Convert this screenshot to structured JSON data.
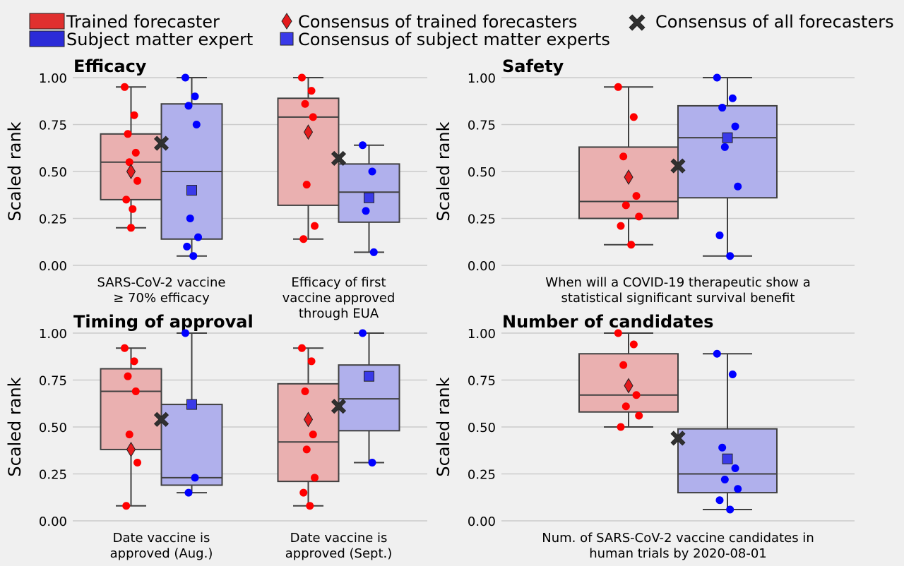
{
  "legend": {
    "entries": [
      {
        "label": "Trained forecaster",
        "marker": "patch",
        "color": "#e0302f"
      },
      {
        "label": "Subject matter expert",
        "marker": "patch",
        "color": "#2b2bd8"
      },
      {
        "label": "Consensus of trained forecasters",
        "marker": "diamond",
        "color": "#e41a1c"
      },
      {
        "label": "Consensus of subject matter experts",
        "marker": "square",
        "color": "#3a3ae8"
      },
      {
        "label": "Consensus of all forecasters",
        "marker": "x",
        "color": "#303030"
      }
    ]
  },
  "colors": {
    "background": "#f0f0f0",
    "grid": "#cbcbcb",
    "trained_box": "#eab0b0",
    "expert_box": "#b0b0ec",
    "trained_point": "#ff0000",
    "expert_point": "#0000ff",
    "box_edge": "#404040"
  },
  "chart_data": [
    {
      "type": "box",
      "title": "Efficacy",
      "ylabel": "Scaled rank",
      "ylim": [
        0,
        1
      ],
      "yticks": [
        "0.00",
        "0.25",
        "0.50",
        "0.75",
        "1.00"
      ],
      "grid": true,
      "categories": [
        {
          "label": [
            "SARS-CoV-2 vaccine",
            "≥ 70% efficacy"
          ],
          "trained": {
            "min": 0.2,
            "q1": 0.35,
            "median": 0.55,
            "q3": 0.7,
            "max": 0.95,
            "consensus": 0.5,
            "points": [
              0.95,
              0.8,
              0.7,
              0.6,
              0.55,
              0.45,
              0.35,
              0.3,
              0.2
            ]
          },
          "expert": {
            "min": 0.05,
            "q1": 0.14,
            "median": 0.5,
            "q3": 0.86,
            "max": 1.0,
            "consensus": 0.4,
            "points": [
              1.0,
              0.9,
              0.85,
              0.75,
              0.25,
              0.15,
              0.1,
              0.05
            ]
          },
          "all_consensus": 0.65
        },
        {
          "label": [
            "Efficacy of first",
            "vaccine approved",
            "through EUA"
          ],
          "trained": {
            "min": 0.14,
            "q1": 0.32,
            "median": 0.79,
            "q3": 0.89,
            "max": 1.0,
            "consensus": 0.71,
            "points": [
              1.0,
              0.93,
              0.86,
              0.79,
              0.43,
              0.21,
              0.14
            ]
          },
          "expert": {
            "min": 0.07,
            "q1": 0.23,
            "median": 0.39,
            "q3": 0.54,
            "max": 0.64,
            "consensus": 0.36,
            "points": [
              0.64,
              0.5,
              0.29,
              0.07
            ]
          },
          "all_consensus": 0.57
        }
      ]
    },
    {
      "type": "box",
      "title": "Safety",
      "ylabel": "Scaled rank",
      "ylim": [
        0,
        1
      ],
      "yticks": [
        "0.00",
        "0.25",
        "0.50",
        "0.75",
        "1.00"
      ],
      "grid": true,
      "categories": [
        {
          "label": [
            "When will a COVID-19 therapeutic show a",
            "statistical significant survival benefit"
          ],
          "trained": {
            "min": 0.11,
            "q1": 0.25,
            "median": 0.34,
            "q3": 0.63,
            "max": 0.95,
            "consensus": 0.47,
            "points": [
              0.95,
              0.79,
              0.58,
              0.37,
              0.32,
              0.26,
              0.21,
              0.11
            ]
          },
          "expert": {
            "min": 0.05,
            "q1": 0.36,
            "median": 0.68,
            "q3": 0.85,
            "max": 1.0,
            "consensus": 0.68,
            "points": [
              1.0,
              0.89,
              0.84,
              0.74,
              0.63,
              0.42,
              0.16,
              0.05
            ]
          },
          "all_consensus": 0.53
        }
      ]
    },
    {
      "type": "box",
      "title": "Timing of approval",
      "ylabel": "Scaled rank",
      "ylim": [
        0,
        1
      ],
      "yticks": [
        "0.00",
        "0.25",
        "0.50",
        "0.75",
        "1.00"
      ],
      "grid": true,
      "categories": [
        {
          "label": [
            "Date vaccine is",
            "approved (Aug.)"
          ],
          "trained": {
            "min": 0.08,
            "q1": 0.38,
            "median": 0.69,
            "q3": 0.81,
            "max": 0.92,
            "consensus": 0.38,
            "points": [
              0.92,
              0.85,
              0.77,
              0.69,
              0.46,
              0.31,
              0.08
            ]
          },
          "expert": {
            "min": 0.15,
            "q1": 0.19,
            "median": 0.23,
            "q3": 0.62,
            "max": 1.0,
            "consensus": 0.62,
            "points": [
              1.0,
              0.23,
              0.15
            ]
          },
          "all_consensus": 0.54
        },
        {
          "label": [
            "Date vaccine is",
            "approved (Sept.)"
          ],
          "trained": {
            "min": 0.08,
            "q1": 0.21,
            "median": 0.42,
            "q3": 0.73,
            "max": 0.92,
            "consensus": 0.54,
            "points": [
              0.92,
              0.85,
              0.69,
              0.46,
              0.38,
              0.23,
              0.15,
              0.08
            ]
          },
          "expert": {
            "min": 0.31,
            "q1": 0.48,
            "median": 0.65,
            "q3": 0.83,
            "max": 1.0,
            "consensus": 0.77,
            "points": [
              1.0,
              0.31
            ]
          },
          "all_consensus": 0.61
        }
      ]
    },
    {
      "type": "box",
      "title": "Number of candidates",
      "ylabel": "Scaled rank",
      "ylim": [
        0,
        1
      ],
      "yticks": [
        "0.00",
        "0.25",
        "0.50",
        "0.75",
        "1.00"
      ],
      "grid": true,
      "categories": [
        {
          "label": [
            "Num. of SARS-CoV-2 vaccine candidates in",
            "human trials by 2020-08-01"
          ],
          "trained": {
            "min": 0.5,
            "q1": 0.58,
            "median": 0.67,
            "q3": 0.89,
            "max": 1.0,
            "consensus": 0.72,
            "points": [
              1.0,
              0.94,
              0.83,
              0.67,
              0.61,
              0.56,
              0.5
            ]
          },
          "expert": {
            "min": 0.06,
            "q1": 0.15,
            "median": 0.25,
            "q3": 0.49,
            "max": 0.89,
            "consensus": 0.33,
            "points": [
              0.89,
              0.78,
              0.39,
              0.28,
              0.22,
              0.17,
              0.11,
              0.06
            ]
          },
          "all_consensus": 0.44
        }
      ]
    }
  ]
}
